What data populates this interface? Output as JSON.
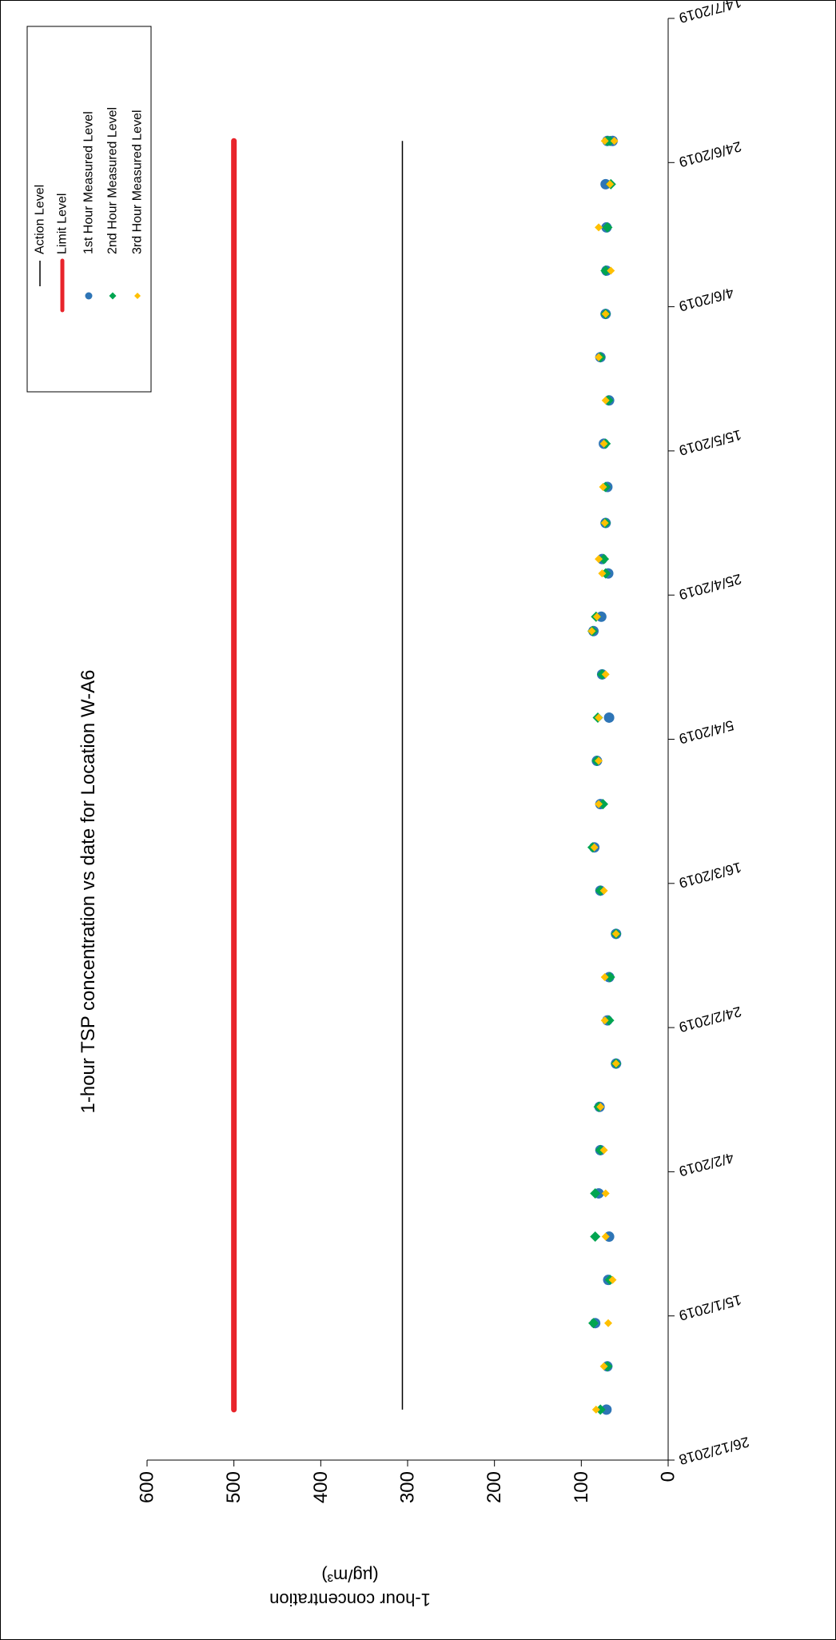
{
  "chart_data": {
    "type": "scatter",
    "title": "1-hour TSP concentration vs date for Location  W-A6",
    "ylabel_line1": "1-hour concentration",
    "ylabel_line2": "(µg/m³)",
    "xlabel": "",
    "ylim": [
      0,
      600
    ],
    "yticks": [
      0,
      100,
      200,
      300,
      400,
      500,
      600
    ],
    "xlim": [
      "26/12/2018",
      "14/7/2019"
    ],
    "xticks": [
      "26/12/2018",
      "15/1/2019",
      "4/2/2019",
      "24/2/2019",
      "16/3/2019",
      "5/4/2019",
      "25/4/2019",
      "15/5/2019",
      "4/6/2019",
      "24/6/2019",
      "14/7/2019"
    ],
    "orientation": "rotated 90 degrees clockwise",
    "action_level": {
      "name": "Action Level",
      "value": 306,
      "from": "2/1/2019",
      "to": "27/6/2019",
      "color": "#000000"
    },
    "limit_level": {
      "name": "Limit Level",
      "value": 500,
      "from": "2/1/2019",
      "to": "27/6/2019",
      "color": "#e8242b"
    },
    "series": [
      {
        "name": "1st Hour Measured Level",
        "color": "#2e75b6",
        "points": [
          [
            "2/1/2019",
            71
          ],
          [
            "8/1/2019",
            70
          ],
          [
            "14/1/2019",
            84
          ],
          [
            "20/1/2019",
            69
          ],
          [
            "26/1/2019",
            68
          ],
          [
            "1/2/2019",
            80
          ],
          [
            "7/2/2019",
            78
          ],
          [
            "13/2/2019",
            79
          ],
          [
            "19/2/2019",
            60
          ],
          [
            "25/2/2019",
            70
          ],
          [
            "3/3/2019",
            68
          ],
          [
            "9/3/2019",
            60
          ],
          [
            "15/3/2019",
            78
          ],
          [
            "21/3/2019",
            85
          ],
          [
            "27/3/2019",
            78
          ],
          [
            "2/4/2019",
            82
          ],
          [
            "8/4/2019",
            68
          ],
          [
            "14/4/2019",
            76
          ],
          [
            "20/4/2019",
            86
          ],
          [
            "22/4/2019",
            77
          ],
          [
            "28/4/2019",
            69
          ],
          [
            "30/4/2019",
            76
          ],
          [
            "5/5/2019",
            72
          ],
          [
            "10/5/2019",
            70
          ],
          [
            "16/5/2019",
            74
          ],
          [
            "22/5/2019",
            68
          ],
          [
            "28/5/2019",
            78
          ],
          [
            "3/6/2019",
            72
          ],
          [
            "9/6/2019",
            71
          ],
          [
            "15/6/2019",
            71
          ],
          [
            "21/6/2019",
            72
          ],
          [
            "27/6/2019",
            64
          ],
          [
            "27/6/2019",
            70
          ]
        ]
      },
      {
        "name": "2nd Hour Measured Level",
        "color": "#00a550",
        "points": [
          [
            "2/1/2019",
            78
          ],
          [
            "8/1/2019",
            70
          ],
          [
            "14/1/2019",
            86
          ],
          [
            "20/1/2019",
            67
          ],
          [
            "26/1/2019",
            84
          ],
          [
            "1/2/2019",
            84
          ],
          [
            "7/2/2019",
            78
          ],
          [
            "13/2/2019",
            80
          ],
          [
            "19/2/2019",
            60
          ],
          [
            "25/2/2019",
            68
          ],
          [
            "3/3/2019",
            67
          ],
          [
            "9/3/2019",
            60
          ],
          [
            "15/3/2019",
            78
          ],
          [
            "21/3/2019",
            87
          ],
          [
            "27/3/2019",
            75
          ],
          [
            "2/4/2019",
            82
          ],
          [
            "8/4/2019",
            81
          ],
          [
            "14/4/2019",
            76
          ],
          [
            "20/4/2019",
            87
          ],
          [
            "22/4/2019",
            83
          ],
          [
            "28/4/2019",
            72
          ],
          [
            "30/4/2019",
            74
          ],
          [
            "5/5/2019",
            72
          ],
          [
            "10/5/2019",
            72
          ],
          [
            "16/5/2019",
            72
          ],
          [
            "22/5/2019",
            69
          ],
          [
            "28/5/2019",
            78
          ],
          [
            "3/6/2019",
            72
          ],
          [
            "9/6/2019",
            72
          ],
          [
            "15/6/2019",
            70
          ],
          [
            "21/6/2019",
            66
          ],
          [
            "27/6/2019",
            67
          ],
          [
            "27/6/2019",
            70
          ]
        ]
      },
      {
        "name": "3rd Hour Measured Level",
        "color": "#ffc000",
        "points": [
          [
            "2/1/2019",
            83
          ],
          [
            "8/1/2019",
            74
          ],
          [
            "14/1/2019",
            69
          ],
          [
            "20/1/2019",
            64
          ],
          [
            "26/1/2019",
            72
          ],
          [
            "1/2/2019",
            72
          ],
          [
            "7/2/2019",
            74
          ],
          [
            "13/2/2019",
            78
          ],
          [
            "19/2/2019",
            60
          ],
          [
            "25/2/2019",
            73
          ],
          [
            "3/3/2019",
            73
          ],
          [
            "9/3/2019",
            60
          ],
          [
            "15/3/2019",
            74
          ],
          [
            "21/3/2019",
            85
          ],
          [
            "27/3/2019",
            80
          ],
          [
            "2/4/2019",
            80
          ],
          [
            "8/4/2019",
            80
          ],
          [
            "14/4/2019",
            72
          ],
          [
            "20/4/2019",
            88
          ],
          [
            "22/4/2019",
            82
          ],
          [
            "28/4/2019",
            76
          ],
          [
            "30/4/2019",
            80
          ],
          [
            "5/5/2019",
            73
          ],
          [
            "10/5/2019",
            75
          ],
          [
            "16/5/2019",
            74
          ],
          [
            "22/5/2019",
            72
          ],
          [
            "28/5/2019",
            80
          ],
          [
            "3/6/2019",
            72
          ],
          [
            "9/6/2019",
            66
          ],
          [
            "15/6/2019",
            80
          ],
          [
            "21/6/2019",
            67
          ],
          [
            "27/6/2019",
            73
          ],
          [
            "27/6/2019",
            62
          ]
        ]
      }
    ],
    "legend": {
      "placement": "top-right",
      "entries": [
        "Action Level",
        "Limit Level",
        "1st Hour Measured Level",
        "2nd Hour Measured Level",
        "3rd Hour Measured Level"
      ]
    },
    "grid": false
  }
}
